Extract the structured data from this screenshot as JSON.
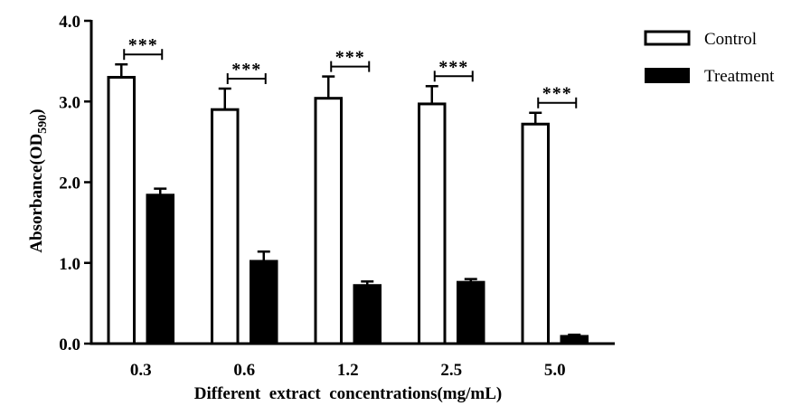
{
  "chart_data": {
    "type": "bar",
    "categories": [
      "0.3",
      "0.6",
      "1.2",
      "2.5",
      "5.0"
    ],
    "series": [
      {
        "name": "Control",
        "values": [
          3.3,
          2.9,
          3.04,
          2.97,
          2.72
        ],
        "errors": [
          0.16,
          0.26,
          0.27,
          0.22,
          0.14
        ],
        "fill": "#ffffff"
      },
      {
        "name": "Treatment",
        "values": [
          1.84,
          1.02,
          0.72,
          0.76,
          0.09
        ],
        "errors": [
          0.08,
          0.12,
          0.05,
          0.04,
          0.02
        ],
        "fill": "#000000"
      }
    ],
    "significance": [
      "***",
      "***",
      "***",
      "***",
      "***"
    ],
    "xlabel": "Different  extract  concentrations(mg/mL)",
    "ylabel": {
      "main": "Absorbance(OD",
      "sub": "590",
      "close": ")"
    },
    "yticks": [
      "0.0",
      "1.0",
      "2.0",
      "3.0",
      "4.0"
    ],
    "ylim": [
      0,
      4
    ],
    "legend_position": "top-right",
    "colors": {
      "axis": "#000000",
      "control_fill": "#ffffff",
      "treatment_fill": "#000000"
    }
  }
}
